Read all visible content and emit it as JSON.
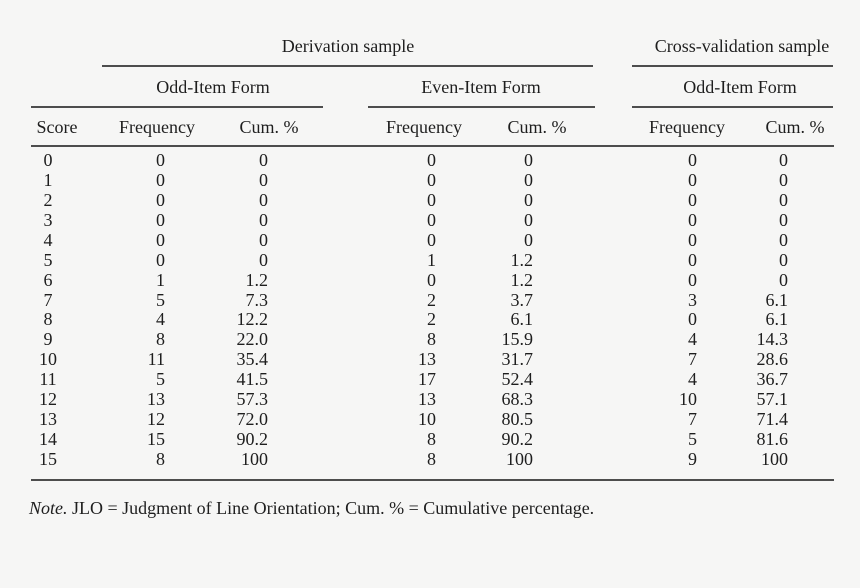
{
  "table": {
    "group_headers": [
      "Derivation sample",
      "Cross-validation sample"
    ],
    "form_headers": [
      "Odd-Item Form",
      "Even-Item Form",
      "Odd-Item Form"
    ],
    "columns": [
      "Score",
      "Frequency",
      "Cum. %",
      "Frequency",
      "Cum. %",
      "Frequency",
      "Cum. %"
    ],
    "rows": [
      [
        "0",
        "0",
        "0",
        "0",
        "0",
        "0",
        "0"
      ],
      [
        "1",
        "0",
        "0",
        "0",
        "0",
        "0",
        "0"
      ],
      [
        "2",
        "0",
        "0",
        "0",
        "0",
        "0",
        "0"
      ],
      [
        "3",
        "0",
        "0",
        "0",
        "0",
        "0",
        "0"
      ],
      [
        "4",
        "0",
        "0",
        "0",
        "0",
        "0",
        "0"
      ],
      [
        "5",
        "0",
        "0",
        "1",
        "1.2",
        "0",
        "0"
      ],
      [
        "6",
        "1",
        "1.2",
        "0",
        "1.2",
        "0",
        "0"
      ],
      [
        "7",
        "5",
        "7.3",
        "2",
        "3.7",
        "3",
        "6.1"
      ],
      [
        "8",
        "4",
        "12.2",
        "2",
        "6.1",
        "0",
        "6.1"
      ],
      [
        "9",
        "8",
        "22.0",
        "8",
        "15.9",
        "4",
        "14.3"
      ],
      [
        "10",
        "11",
        "35.4",
        "13",
        "31.7",
        "7",
        "28.6"
      ],
      [
        "11",
        "5",
        "41.5",
        "17",
        "52.4",
        "4",
        "36.7"
      ],
      [
        "12",
        "13",
        "57.3",
        "13",
        "68.3",
        "10",
        "57.1"
      ],
      [
        "13",
        "12",
        "72.0",
        "10",
        "80.5",
        "7",
        "71.4"
      ],
      [
        "14",
        "15",
        "90.2",
        "8",
        "90.2",
        "5",
        "81.6"
      ],
      [
        "15",
        "8",
        "100",
        "8",
        "100",
        "9",
        "100"
      ]
    ],
    "note": {
      "prefix": "Note.",
      "text": " JLO = Judgment of Line Orientation; Cum. % = Cumulative percentage."
    }
  },
  "colors": {
    "background": "#f6f6f5",
    "text": "#1e1e1e",
    "rule": "#4d4d4d"
  }
}
